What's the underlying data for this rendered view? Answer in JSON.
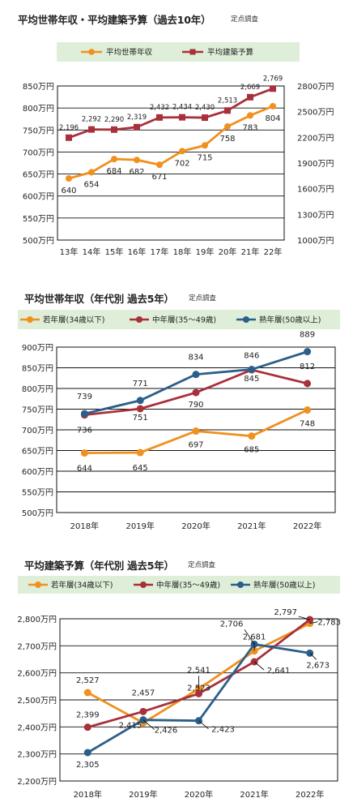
{
  "chart_data": [
    {
      "type": "line",
      "title": "平均世帯年収・平均建築予算（過去10年）",
      "subtitle": "定点調査",
      "categories": [
        "13年",
        "14年",
        "15年",
        "16年",
        "17年",
        "18年",
        "19年",
        "20年",
        "21年",
        "22年"
      ],
      "series": [
        {
          "name": "平均世帯年収",
          "axis": "left",
          "color": "#f0901e",
          "values": [
            640,
            654,
            684,
            682,
            671,
            702,
            715,
            758,
            783,
            804
          ],
          "labels": [
            "640",
            "654",
            "684",
            "682",
            "671",
            "702",
            "715",
            "758",
            "783",
            "804"
          ]
        },
        {
          "name": "平均建築予算",
          "axis": "right",
          "color": "#a8303b",
          "values": [
            2196,
            2292,
            2290,
            2319,
            2432,
            2434,
            2430,
            2513,
            2669,
            2769
          ],
          "labels": [
            "2,196",
            "2,292",
            "2,290",
            "2,319",
            "2,432",
            "2,434",
            "2,430",
            "2,513",
            "2,669",
            "2,769"
          ]
        }
      ],
      "ylim": [
        500,
        850
      ],
      "yticks": [
        "500万円",
        "550万円",
        "600万円",
        "650万円",
        "700万円",
        "750万円",
        "800万円",
        "850万円"
      ],
      "y2lim": [
        1000,
        2800
      ],
      "y2ticks": [
        "1000万円",
        "1300万円",
        "1600万円",
        "1900万円",
        "2200万円",
        "2500万円",
        "2800万円"
      ],
      "legend": "top",
      "grid": true
    },
    {
      "type": "line",
      "title": "平均世帯年収（年代別 過去5年）",
      "subtitle": "定点調査",
      "categories": [
        "2018年",
        "2019年",
        "2020年",
        "2021年",
        "2022年"
      ],
      "series": [
        {
          "name": "若年層(34歳以下)",
          "color": "#f0901e",
          "values": [
            644,
            645,
            697,
            685,
            748
          ],
          "labels": [
            "644",
            "645",
            "697",
            "685",
            "748"
          ]
        },
        {
          "name": "中年層(35～49歳)",
          "color": "#a8303b",
          "values": [
            736,
            751,
            790,
            845,
            812
          ],
          "labels": [
            "736",
            "751",
            "790",
            "845",
            "812"
          ]
        },
        {
          "name": "熟年層(50歳以上)",
          "color": "#2b5f8a",
          "values": [
            739,
            771,
            834,
            846,
            889
          ],
          "labels": [
            "739",
            "771",
            "834",
            "846",
            "889"
          ]
        }
      ],
      "ylim": [
        500,
        900
      ],
      "yticks": [
        "500万円",
        "550万円",
        "600万円",
        "650万円",
        "700万円",
        "750万円",
        "800万円",
        "850万円",
        "900万円"
      ],
      "legend": "top",
      "grid": true
    },
    {
      "type": "line",
      "title": "平均建築予算（年代別 過去5年）",
      "subtitle": "定点調査",
      "categories": [
        "2018年",
        "2019年",
        "2020年",
        "2021年",
        "2022年"
      ],
      "series": [
        {
          "name": "若年層(34歳以下)",
          "color": "#f0901e",
          "values": [
            2527,
            2415,
            2541,
            2681,
            2783
          ],
          "labels": [
            "2,527",
            "2,415",
            "2,541",
            "2,681",
            "2,783"
          ]
        },
        {
          "name": "中年層(35～49歳)",
          "color": "#a8303b",
          "values": [
            2399,
            2457,
            2523,
            2641,
            2797
          ],
          "labels": [
            "2,399",
            "2,457",
            "2,523",
            "2,641",
            "2,797"
          ]
        },
        {
          "name": "熟年層(50歳以上)",
          "color": "#2b5f8a",
          "values": [
            2305,
            2426,
            2423,
            2706,
            2673
          ],
          "labels": [
            "2,305",
            "2,426",
            "2,423",
            "2,706",
            "2,673"
          ]
        }
      ],
      "ylim": [
        2200,
        2800
      ],
      "yticks": [
        "2,200万円",
        "2,300万円",
        "2,400万円",
        "2,500万円",
        "2,600万円",
        "2,700万円",
        "2,800万円"
      ],
      "legend": "top",
      "grid": true
    }
  ]
}
